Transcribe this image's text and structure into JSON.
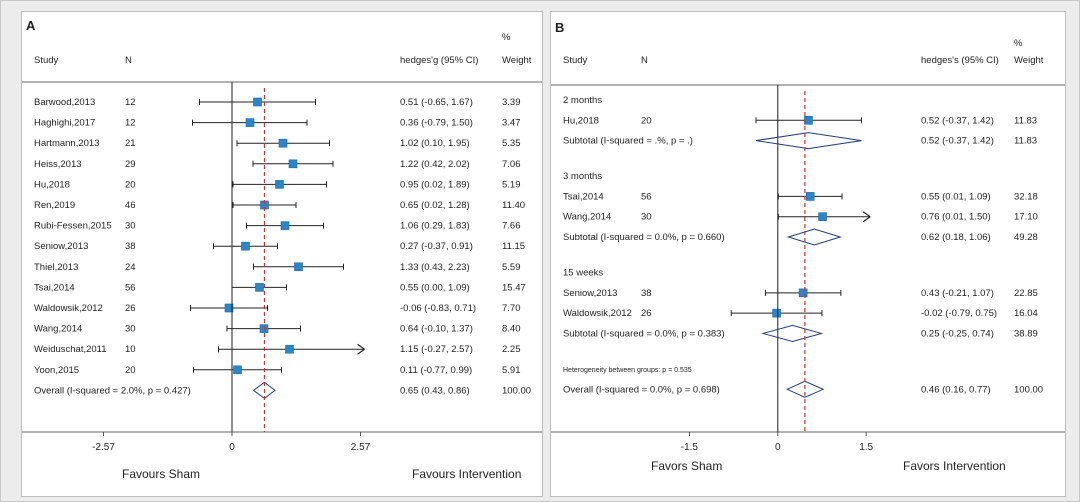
{
  "chart_data": [
    {
      "type": "forest",
      "panel_label": "A",
      "headers": {
        "study": "Study",
        "n": "N",
        "effect": "hedges'g (95% CI)",
        "pct": "%",
        "weight": "Weight"
      },
      "xlim": [
        -3.0,
        3.2
      ],
      "ref_line": 0.65,
      "ticks": [
        {
          "v": -2.57,
          "label": "-2.57"
        },
        {
          "v": 0,
          "label": "0"
        },
        {
          "v": 2.57,
          "label": "2.57"
        }
      ],
      "favors_left": "Favours Sham",
      "favors_right": "Favours Intervention",
      "rows": [
        {
          "kind": "study",
          "study": "Barwood,2013",
          "n": "12",
          "g": 0.51,
          "lo": -0.65,
          "hi": 1.67,
          "ci_text": "0.51 (-0.65, 1.67)",
          "weight": "3.39"
        },
        {
          "kind": "study",
          "study": "Haghighi,2017",
          "n": "12",
          "g": 0.36,
          "lo": -0.79,
          "hi": 1.5,
          "ci_text": "0.36 (-0.79, 1.50)",
          "weight": "3.47"
        },
        {
          "kind": "study",
          "study": "Hartmann,2013",
          "n": "21",
          "g": 1.02,
          "lo": 0.1,
          "hi": 1.95,
          "ci_text": "1.02 (0.10, 1.95)",
          "weight": "5.35"
        },
        {
          "kind": "study",
          "study": "Heiss,2013",
          "n": "29",
          "g": 1.22,
          "lo": 0.42,
          "hi": 2.02,
          "ci_text": "1.22 (0.42, 2.02)",
          "weight": "7.06"
        },
        {
          "kind": "study",
          "study": "Hu,2018",
          "n": "20",
          "g": 0.95,
          "lo": 0.02,
          "hi": 1.89,
          "ci_text": "0.95 (0.02, 1.89)",
          "weight": "5.19"
        },
        {
          "kind": "study",
          "study": "Ren,2019",
          "n": "46",
          "g": 0.65,
          "lo": 0.02,
          "hi": 1.28,
          "ci_text": "0.65 (0.02, 1.28)",
          "weight": "11.40"
        },
        {
          "kind": "study",
          "study": "Rubi-Fessen,2015",
          "n": "30",
          "g": 1.06,
          "lo": 0.29,
          "hi": 1.83,
          "ci_text": "1.06 (0.29, 1.83)",
          "weight": "7.66"
        },
        {
          "kind": "study",
          "study": "Seniow,2013",
          "n": "38",
          "g": 0.27,
          "lo": -0.37,
          "hi": 0.91,
          "ci_text": "0.27 (-0.37, 0.91)",
          "weight": "11.15"
        },
        {
          "kind": "study",
          "study": "Thiel,2013",
          "n": "24",
          "g": 1.33,
          "lo": 0.43,
          "hi": 2.23,
          "ci_text": "1.33 (0.43, 2.23)",
          "weight": "5.59"
        },
        {
          "kind": "study",
          "study": "Tsai,2014",
          "n": "56",
          "g": 0.55,
          "lo": 0.0,
          "hi": 1.09,
          "ci_text": "0.55 (0.00, 1.09)",
          "weight": "15.47"
        },
        {
          "kind": "study",
          "study": "Waldowsik,2012",
          "n": "26",
          "g": -0.06,
          "lo": -0.83,
          "hi": 0.71,
          "ci_text": "-0.06 (-0.83, 0.71)",
          "weight": "7.70"
        },
        {
          "kind": "study",
          "study": "Wang,2014",
          "n": "30",
          "g": 0.64,
          "lo": -0.1,
          "hi": 1.37,
          "ci_text": "0.64 (-0.10, 1.37)",
          "weight": "8.40"
        },
        {
          "kind": "study",
          "study": "Weiduschat,2011",
          "n": "10",
          "g": 1.15,
          "lo": -0.27,
          "hi": 2.57,
          "ci_text": "1.15 (-0.27, 2.57)",
          "weight": "2.25",
          "arrow": true
        },
        {
          "kind": "study",
          "study": "Yoon,2015",
          "n": "20",
          "g": 0.11,
          "lo": -0.77,
          "hi": 0.99,
          "ci_text": "0.11 (-0.77, 0.99)",
          "weight": "5.91"
        },
        {
          "kind": "pooled",
          "label": "Overall  (I-squared = 2.0%, p = 0.427)",
          "g": 0.65,
          "lo": 0.43,
          "hi": 0.86,
          "ci_text": "0.65 (0.43, 0.86)",
          "weight": "100.00"
        }
      ]
    },
    {
      "type": "forest",
      "panel_label": "B",
      "headers": {
        "study": "Study",
        "n": "N",
        "effect": "hedges's (95% CI)",
        "pct": "%",
        "weight": "Weight"
      },
      "xlim": [
        -3.0,
        2.6
      ],
      "ref_line": 0.46,
      "ticks": [
        {
          "v": -1.5,
          "label": "-1.5"
        },
        {
          "v": 0,
          "label": "0"
        },
        {
          "v": 1.5,
          "label": "1.5"
        }
      ],
      "favors_left": "Favors Sham",
      "favors_right": "Favors Intervention",
      "rows": [
        {
          "kind": "group",
          "label": "2 months"
        },
        {
          "kind": "study",
          "study": "Hu,2018",
          "n": "20",
          "g": 0.52,
          "lo": -0.37,
          "hi": 1.42,
          "ci_text": "0.52 (-0.37, 1.42)",
          "weight": "11.83"
        },
        {
          "kind": "pooled",
          "label": "Subtotal  (I-squared = .%, p = .)",
          "g": 0.52,
          "lo": -0.37,
          "hi": 1.42,
          "ci_text": "0.52 (-0.37, 1.42)",
          "weight": "11.83"
        },
        {
          "kind": "gap"
        },
        {
          "kind": "group",
          "label": "3 months"
        },
        {
          "kind": "study",
          "study": "Tsai,2014",
          "n": "56",
          "g": 0.55,
          "lo": 0.01,
          "hi": 1.09,
          "ci_text": "0.55 (0.01, 1.09)",
          "weight": "32.18"
        },
        {
          "kind": "study",
          "study": "Wang,2014",
          "n": "30",
          "g": 0.76,
          "lo": 0.01,
          "hi": 1.5,
          "ci_text": "0.76 (0.01, 1.50)",
          "weight": "17.10",
          "arrow": true
        },
        {
          "kind": "pooled",
          "label": "Subtotal  (I-squared = 0.0%, p = 0.660)",
          "g": 0.62,
          "lo": 0.18,
          "hi": 1.06,
          "ci_text": "0.62 (0.18, 1.06)",
          "weight": "49.28"
        },
        {
          "kind": "gap"
        },
        {
          "kind": "group",
          "label": "15 weeks"
        },
        {
          "kind": "study",
          "study": "Seniow,2013",
          "n": "38",
          "g": 0.43,
          "lo": -0.21,
          "hi": 1.07,
          "ci_text": "0.43 (-0.21, 1.07)",
          "weight": "22.85"
        },
        {
          "kind": "study",
          "study": "Waldowsik,2012",
          "n": "26",
          "g": -0.02,
          "lo": -0.79,
          "hi": 0.75,
          "ci_text": "-0.02 (-0.79, 0.75)",
          "weight": "16.04"
        },
        {
          "kind": "pooled",
          "label": "Subtotal  (I-squared = 0.0%, p = 0.383)",
          "g": 0.25,
          "lo": -0.25,
          "hi": 0.74,
          "ci_text": "0.25 (-0.25, 0.74)",
          "weight": "38.89"
        },
        {
          "kind": "gap"
        },
        {
          "kind": "note",
          "label": "Heterogeneity between groups: p = 0.535"
        },
        {
          "kind": "pooled",
          "label": "Overall  (I-squared = 0.0%, p = 0.698)",
          "g": 0.46,
          "lo": 0.16,
          "hi": 0.77,
          "ci_text": "0.46 (0.16, 0.77)",
          "weight": "100.00"
        }
      ]
    }
  ]
}
